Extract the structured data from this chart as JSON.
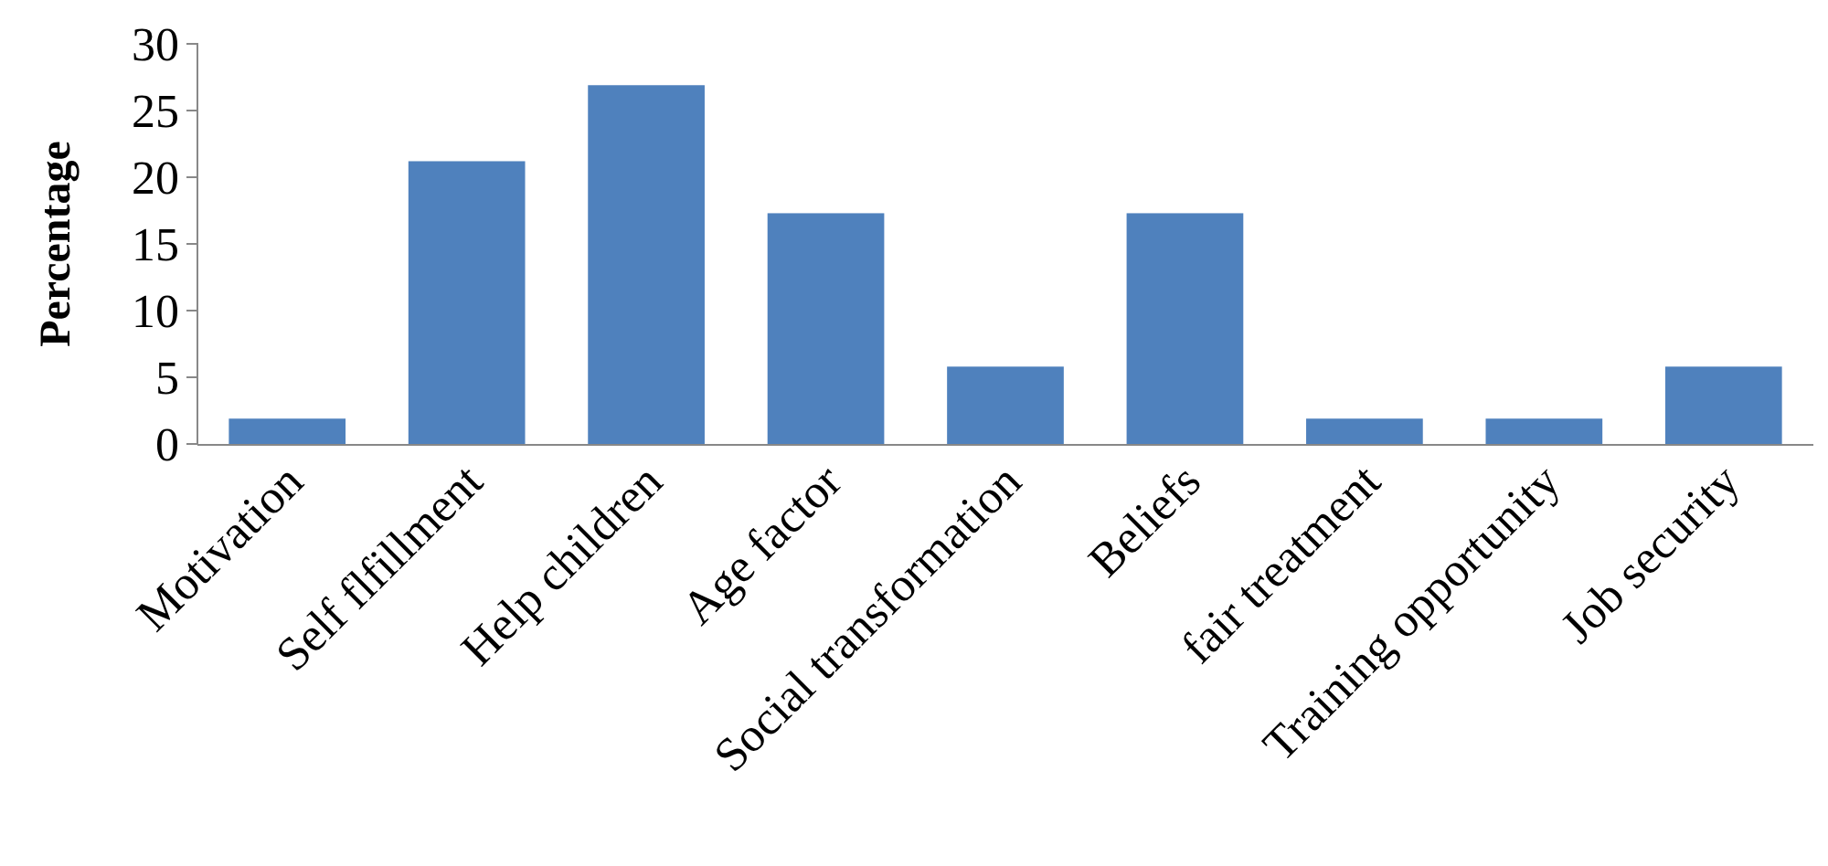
{
  "chart_data": {
    "type": "bar",
    "ylabel": "Percentage",
    "categories": [
      "Motivation",
      "Self flfillment",
      "Help children",
      "Age factor",
      "Social transformation",
      "Beliefs",
      "fair treatment",
      "Training opportunity",
      "Job security"
    ],
    "values": [
      1.9,
      21.2,
      26.9,
      17.3,
      5.8,
      17.3,
      1.9,
      1.9,
      5.8
    ],
    "color": "#4f81bd",
    "ylim": [
      0,
      30
    ],
    "yticks": [
      0,
      5,
      10,
      15,
      20,
      25,
      30
    ],
    "grid": false
  }
}
